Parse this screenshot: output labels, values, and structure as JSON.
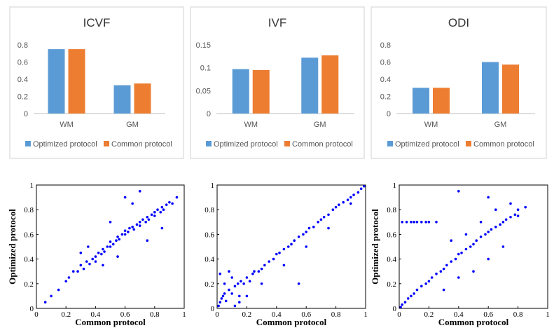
{
  "colors": {
    "optimized": "#5B9BD5",
    "common": "#ED7D31",
    "scatter": "#0000FF"
  },
  "chart_data": [
    {
      "type": "bar",
      "title": "ICVF",
      "categories": [
        "WM",
        "GM"
      ],
      "yticks": [
        "0",
        "0.2",
        "0.4",
        "0.6",
        "0.8"
      ],
      "ylim": [
        0,
        0.8
      ],
      "series": [
        {
          "name": "Optimized protocol",
          "values": [
            0.75,
            0.33
          ]
        },
        {
          "name": "Common protocol",
          "values": [
            0.75,
            0.35
          ]
        }
      ],
      "legend": "bottom",
      "grid": false
    },
    {
      "type": "bar",
      "title": "IVF",
      "categories": [
        "WM",
        "GM"
      ],
      "yticks": [
        "0",
        "0.05",
        "0.1",
        "0.15"
      ],
      "ylim": [
        0,
        0.15
      ],
      "series": [
        {
          "name": "Optimized protocol",
          "values": [
            0.097,
            0.122
          ]
        },
        {
          "name": "Common protocol",
          "values": [
            0.095,
            0.127
          ]
        }
      ],
      "legend": "bottom",
      "grid": false
    },
    {
      "type": "bar",
      "title": "ODI",
      "categories": [
        "WM",
        "GM"
      ],
      "yticks": [
        "0",
        "0.2",
        "0.4",
        "0.6",
        "0.8"
      ],
      "ylim": [
        0,
        0.8
      ],
      "series": [
        {
          "name": "Optimized protocol",
          "values": [
            0.3,
            0.6
          ]
        },
        {
          "name": "Common protocol",
          "values": [
            0.3,
            0.57
          ]
        }
      ],
      "legend": "bottom",
      "grid": false
    },
    {
      "type": "scatter",
      "xlabel": "Common protocol",
      "ylabel": "Optimized protocol",
      "xlim": [
        0,
        1
      ],
      "ylim": [
        0,
        1
      ],
      "xticks": [
        "0",
        "0.2",
        "0.4",
        "0.6",
        "0.8",
        "1"
      ],
      "yticks": [
        "0",
        "0.2",
        "0.4",
        "0.6",
        "0.8",
        "1"
      ],
      "x": [
        0.06,
        0.1,
        0.15,
        0.2,
        0.22,
        0.25,
        0.28,
        0.3,
        0.32,
        0.34,
        0.36,
        0.38,
        0.4,
        0.4,
        0.42,
        0.44,
        0.45,
        0.46,
        0.48,
        0.5,
        0.5,
        0.52,
        0.54,
        0.55,
        0.56,
        0.58,
        0.6,
        0.6,
        0.62,
        0.63,
        0.65,
        0.66,
        0.68,
        0.7,
        0.7,
        0.72,
        0.74,
        0.75,
        0.76,
        0.78,
        0.8,
        0.8,
        0.82,
        0.84,
        0.85,
        0.86,
        0.88,
        0.9,
        0.92,
        0.95,
        0.3,
        0.35,
        0.45,
        0.55,
        0.65,
        0.7,
        0.75,
        0.85,
        0.5,
        0.6
      ],
      "y": [
        0.05,
        0.1,
        0.15,
        0.22,
        0.25,
        0.3,
        0.3,
        0.35,
        0.32,
        0.38,
        0.36,
        0.4,
        0.42,
        0.38,
        0.45,
        0.44,
        0.48,
        0.46,
        0.5,
        0.5,
        0.54,
        0.52,
        0.55,
        0.58,
        0.56,
        0.6,
        0.6,
        0.63,
        0.62,
        0.65,
        0.66,
        0.64,
        0.68,
        0.7,
        0.67,
        0.72,
        0.7,
        0.74,
        0.72,
        0.76,
        0.78,
        0.75,
        0.8,
        0.78,
        0.82,
        0.8,
        0.84,
        0.86,
        0.85,
        0.9,
        0.45,
        0.5,
        0.35,
        0.42,
        0.85,
        0.95,
        0.55,
        0.65,
        0.7,
        0.9
      ],
      "grid": false
    },
    {
      "type": "scatter",
      "xlabel": "Common protocol",
      "ylabel": "",
      "xlim": [
        0,
        1
      ],
      "ylim": [
        0,
        1
      ],
      "xticks": [
        "0",
        "0.2",
        "0.4",
        "0.6",
        "0.8",
        "1"
      ],
      "yticks": [
        "0",
        "0.2",
        "0.4",
        "0.6",
        "0.8",
        "1"
      ],
      "x": [
        0.01,
        0.02,
        0.03,
        0.04,
        0.05,
        0.06,
        0.08,
        0.1,
        0.12,
        0.14,
        0.15,
        0.16,
        0.18,
        0.2,
        0.22,
        0.24,
        0.25,
        0.28,
        0.3,
        0.32,
        0.35,
        0.38,
        0.4,
        0.42,
        0.45,
        0.48,
        0.5,
        0.52,
        0.55,
        0.58,
        0.6,
        0.62,
        0.65,
        0.68,
        0.7,
        0.72,
        0.75,
        0.78,
        0.8,
        0.82,
        0.85,
        0.88,
        0.9,
        0.92,
        0.95,
        0.97,
        0.99,
        0.05,
        0.1,
        0.15,
        0.2,
        0.02,
        0.08,
        0.12,
        0.3,
        0.45,
        0.6,
        0.75,
        0.9,
        0.55
      ],
      "y": [
        0.02,
        0.05,
        0.08,
        0.1,
        0.12,
        0.06,
        0.15,
        0.12,
        0.18,
        0.2,
        0.1,
        0.22,
        0.2,
        0.25,
        0.22,
        0.28,
        0.3,
        0.3,
        0.32,
        0.35,
        0.38,
        0.4,
        0.44,
        0.45,
        0.48,
        0.5,
        0.52,
        0.55,
        0.58,
        0.6,
        0.62,
        0.65,
        0.66,
        0.7,
        0.72,
        0.74,
        0.76,
        0.8,
        0.82,
        0.84,
        0.86,
        0.88,
        0.9,
        0.92,
        0.94,
        0.97,
        0.99,
        0.2,
        0.25,
        0.05,
        0.1,
        0.28,
        0.3,
        0.02,
        0.2,
        0.35,
        0.5,
        0.65,
        0.85,
        0.2
      ],
      "grid": false
    },
    {
      "type": "scatter",
      "xlabel": "Common protocol",
      "ylabel": "Optimized protocol",
      "xlim": [
        0,
        1
      ],
      "ylim": [
        0,
        1
      ],
      "xticks": [
        "0",
        "0.2",
        "0.4",
        "0.6",
        "0.8",
        "1"
      ],
      "yticks": [
        "0",
        "0.2",
        "0.4",
        "0.6",
        "0.8",
        "1"
      ],
      "x": [
        0.01,
        0.02,
        0.04,
        0.06,
        0.08,
        0.1,
        0.12,
        0.15,
        0.18,
        0.2,
        0.22,
        0.25,
        0.28,
        0.3,
        0.32,
        0.35,
        0.38,
        0.4,
        0.42,
        0.45,
        0.48,
        0.5,
        0.52,
        0.55,
        0.58,
        0.6,
        0.62,
        0.65,
        0.68,
        0.7,
        0.72,
        0.75,
        0.78,
        0.8,
        0.85,
        0.02,
        0.05,
        0.08,
        0.1,
        0.12,
        0.15,
        0.18,
        0.2,
        0.25,
        0.3,
        0.4,
        0.5,
        0.6,
        0.7,
        0.35,
        0.45,
        0.55,
        0.65,
        0.75,
        0.4,
        0.6,
        0.8
      ],
      "y": [
        0.01,
        0.03,
        0.05,
        0.08,
        0.1,
        0.12,
        0.15,
        0.18,
        0.2,
        0.22,
        0.25,
        0.28,
        0.3,
        0.32,
        0.35,
        0.38,
        0.4,
        0.44,
        0.45,
        0.48,
        0.5,
        0.52,
        0.55,
        0.58,
        0.6,
        0.62,
        0.64,
        0.66,
        0.68,
        0.7,
        0.72,
        0.74,
        0.76,
        0.8,
        0.82,
        0.7,
        0.7,
        0.7,
        0.7,
        0.7,
        0.7,
        0.7,
        0.7,
        0.7,
        0.15,
        0.25,
        0.3,
        0.4,
        0.5,
        0.55,
        0.6,
        0.7,
        0.8,
        0.85,
        0.95,
        0.9,
        0.75
      ],
      "grid": false
    }
  ]
}
